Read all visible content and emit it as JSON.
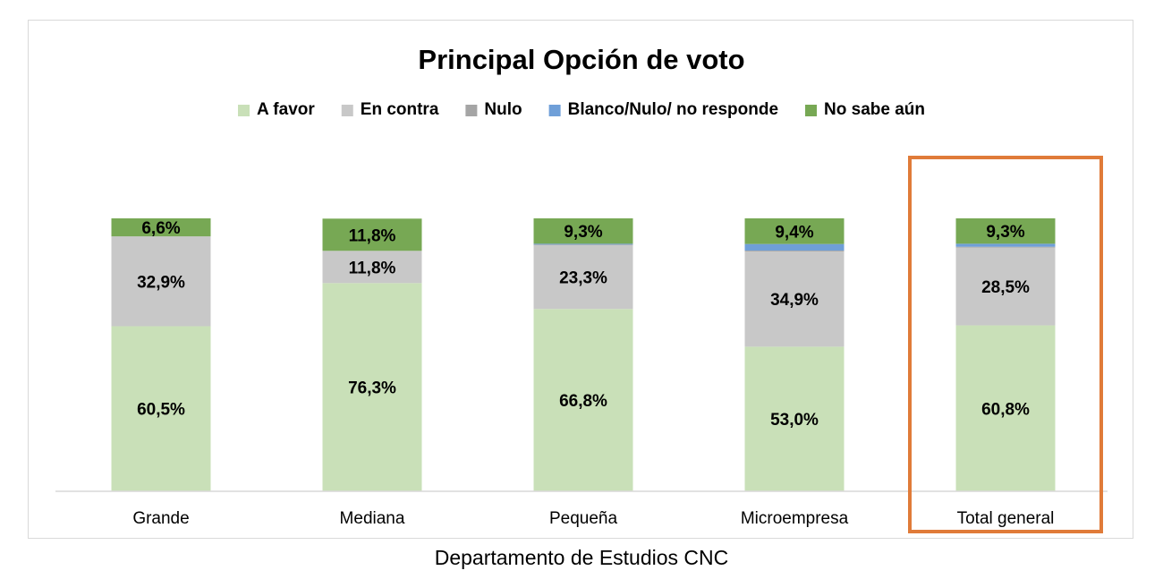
{
  "chart_data": {
    "type": "bar",
    "stacked": true,
    "title": "Principal Opción de voto",
    "categories": [
      "Grande",
      "Mediana",
      "Pequeña",
      "Microempresa",
      "Total general"
    ],
    "series": [
      {
        "name": "A favor",
        "color": "#c9e0b8",
        "values": [
          60.5,
          76.3,
          66.8,
          53.0,
          60.8
        ],
        "labels": [
          "60,5%",
          "76,3%",
          "66,8%",
          "53,0%",
          "60,8%"
        ]
      },
      {
        "name": "En contra",
        "color": "#c8c8c8",
        "values": [
          32.9,
          11.8,
          23.3,
          34.9,
          28.5
        ],
        "labels": [
          "32,9%",
          "11,8%",
          "23,3%",
          "34,9%",
          "28,5%"
        ]
      },
      {
        "name": "Nulo",
        "color": "#a5a5a5",
        "values": [
          0,
          0,
          0.3,
          0.3,
          0.3
        ],
        "labels": [
          "",
          "",
          "",
          "",
          ""
        ]
      },
      {
        "name": "Blanco/Nulo/ no responde",
        "color": "#6f9fd8",
        "values": [
          0,
          0,
          0.3,
          2.4,
          1.1
        ],
        "labels": [
          "",
          "",
          "",
          "",
          ""
        ]
      },
      {
        "name": "No sabe aún",
        "color": "#77a854",
        "values": [
          6.6,
          11.8,
          9.3,
          9.4,
          9.3
        ],
        "labels": [
          "6,6%",
          "11,8%",
          "9,3%",
          "9,4%",
          "9,3%"
        ]
      }
    ],
    "ylim": [
      0,
      100
    ],
    "legend_position": "top",
    "highlighted_category": "Total general",
    "highlight_color": "#e07b39"
  },
  "source": "Departamento de Estudios CNC"
}
